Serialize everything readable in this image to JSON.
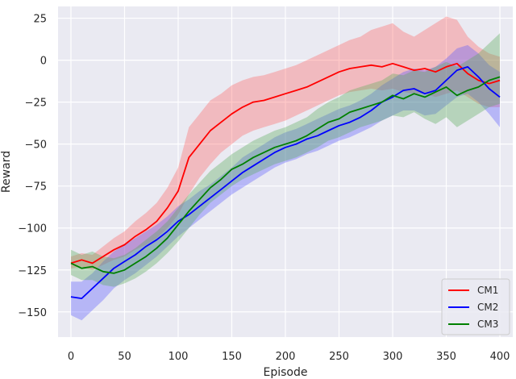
{
  "chart_data": {
    "type": "line",
    "title": "",
    "xlabel": "Episode",
    "ylabel": "Reward",
    "xlim": [
      -12,
      412
    ],
    "ylim": [
      -165,
      32
    ],
    "xticks": [
      0,
      50,
      100,
      150,
      200,
      250,
      300,
      350,
      400
    ],
    "yticks": [
      -150,
      -125,
      -100,
      -75,
      -50,
      -25,
      0,
      25
    ],
    "grid": true,
    "legend_position": "lower-right",
    "x": [
      0,
      10,
      20,
      30,
      40,
      50,
      60,
      70,
      80,
      90,
      100,
      110,
      120,
      130,
      140,
      150,
      160,
      170,
      180,
      190,
      200,
      210,
      220,
      230,
      240,
      250,
      260,
      270,
      280,
      290,
      300,
      310,
      320,
      330,
      340,
      350,
      360,
      370,
      380,
      390,
      400
    ],
    "series": [
      {
        "name": "CM1",
        "color": "#ff0000",
        "fill": "#ff6060",
        "values": [
          -121,
          -119,
          -121,
          -117,
          -113,
          -110,
          -105,
          -101,
          -96,
          -88,
          -78,
          -58,
          -50,
          -42,
          -37,
          -32,
          -28,
          -25,
          -24,
          -22,
          -20,
          -18,
          -16,
          -13,
          -10,
          -7,
          -5,
          -4,
          -3,
          -4,
          -2,
          -4,
          -6,
          -5,
          -7,
          -4,
          -2,
          -8,
          -12,
          -14,
          -12
        ],
        "lower": [
          -124,
          -123,
          -125,
          -122,
          -119,
          -117,
          -113,
          -110,
          -106,
          -100,
          -92,
          -80,
          -70,
          -62,
          -55,
          -50,
          -45,
          -42,
          -40,
          -38,
          -36,
          -33,
          -30,
          -27,
          -24,
          -21,
          -19,
          -18,
          -17,
          -18,
          -17,
          -19,
          -20,
          -20,
          -22,
          -20,
          -18,
          -22,
          -26,
          -28,
          -28
        ],
        "upper": [
          -117,
          -115,
          -116,
          -111,
          -106,
          -102,
          -96,
          -91,
          -85,
          -76,
          -64,
          -40,
          -32,
          -24,
          -20,
          -15,
          -12,
          -10,
          -9,
          -7,
          -5,
          -3,
          0,
          3,
          6,
          9,
          12,
          14,
          18,
          20,
          22,
          17,
          14,
          18,
          22,
          26,
          24,
          14,
          8,
          4,
          2
        ]
      },
      {
        "name": "CM2",
        "color": "#0000ff",
        "fill": "#5555ff",
        "values": [
          -141,
          -142,
          -136,
          -130,
          -124,
          -120,
          -116,
          -111,
          -107,
          -102,
          -96,
          -92,
          -87,
          -82,
          -77,
          -72,
          -67,
          -63,
          -59,
          -55,
          -52,
          -50,
          -47,
          -45,
          -42,
          -39,
          -37,
          -34,
          -30,
          -25,
          -22,
          -18,
          -17,
          -20,
          -18,
          -12,
          -6,
          -4,
          -10,
          -17,
          -22
        ],
        "lower": [
          -152,
          -155,
          -149,
          -143,
          -136,
          -131,
          -127,
          -122,
          -117,
          -111,
          -105,
          -100,
          -95,
          -90,
          -85,
          -80,
          -76,
          -72,
          -68,
          -64,
          -61,
          -59,
          -56,
          -54,
          -51,
          -48,
          -46,
          -43,
          -40,
          -36,
          -33,
          -30,
          -30,
          -33,
          -32,
          -27,
          -22,
          -20,
          -25,
          -32,
          -40
        ],
        "upper": [
          -132,
          -132,
          -127,
          -120,
          -114,
          -110,
          -106,
          -102,
          -98,
          -93,
          -87,
          -83,
          -78,
          -74,
          -69,
          -64,
          -58,
          -54,
          -50,
          -46,
          -43,
          -41,
          -38,
          -35,
          -32,
          -29,
          -27,
          -24,
          -20,
          -15,
          -11,
          -7,
          -5,
          -6,
          -4,
          1,
          7,
          9,
          4,
          -3,
          -7
        ]
      },
      {
        "name": "CM3",
        "color": "#008000",
        "fill": "#55aa55",
        "values": [
          -121,
          -124,
          -123,
          -126,
          -127,
          -125,
          -121,
          -117,
          -112,
          -106,
          -98,
          -90,
          -83,
          -76,
          -71,
          -65,
          -62,
          -58,
          -55,
          -52,
          -50,
          -48,
          -45,
          -41,
          -37,
          -35,
          -31,
          -29,
          -27,
          -25,
          -21,
          -23,
          -20,
          -22,
          -19,
          -16,
          -21,
          -18,
          -16,
          -12,
          -10
        ],
        "lower": [
          -128,
          -131,
          -131,
          -134,
          -135,
          -133,
          -130,
          -126,
          -121,
          -115,
          -108,
          -100,
          -92,
          -85,
          -80,
          -75,
          -71,
          -68,
          -65,
          -62,
          -60,
          -58,
          -55,
          -52,
          -48,
          -46,
          -43,
          -40,
          -38,
          -36,
          -33,
          -34,
          -31,
          -35,
          -38,
          -34,
          -40,
          -36,
          -32,
          -28,
          -26
        ],
        "upper": [
          -113,
          -116,
          -114,
          -117,
          -118,
          -116,
          -112,
          -107,
          -102,
          -96,
          -88,
          -80,
          -73,
          -66,
          -61,
          -56,
          -52,
          -48,
          -45,
          -42,
          -40,
          -37,
          -34,
          -29,
          -25,
          -22,
          -18,
          -16,
          -14,
          -12,
          -8,
          -9,
          -6,
          -7,
          -4,
          -1,
          -4,
          0,
          4,
          10,
          16
        ]
      }
    ]
  }
}
